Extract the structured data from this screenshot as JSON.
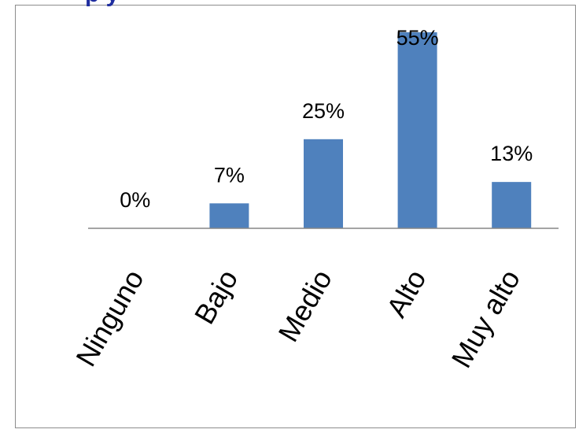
{
  "title": "",
  "top_title_fragment": "p                                    y",
  "chart_data": {
    "type": "bar",
    "categories": [
      "Ninguno",
      "Bajo",
      "Medio",
      "Alto",
      "Muy alto"
    ],
    "values": [
      0,
      7,
      25,
      55,
      13
    ],
    "data_labels": [
      "0%",
      "7%",
      "25%",
      "55%",
      "13%"
    ],
    "value_unit": "%",
    "ylim": [
      0,
      55
    ],
    "grid": false,
    "legend": "none",
    "bar_color": "#4f81bd",
    "axis_color": "#868686"
  }
}
